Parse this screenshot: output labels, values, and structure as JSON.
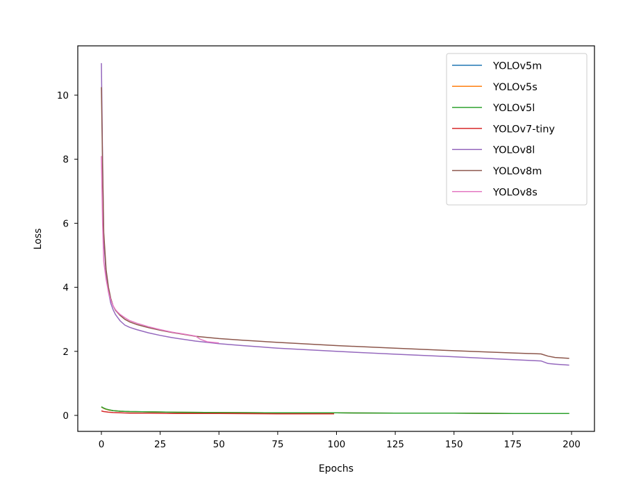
{
  "chart_data": {
    "type": "line",
    "title": "",
    "xlabel": "Epochs",
    "ylabel": "Loss",
    "xlim": [
      -10,
      210
    ],
    "ylim": [
      -0.5,
      11.5
    ],
    "xticks": [
      0,
      25,
      50,
      75,
      100,
      125,
      150,
      175,
      200
    ],
    "yticks": [
      0,
      2,
      4,
      6,
      8,
      10
    ],
    "grid": false,
    "legend_position": "upper right",
    "series": [
      {
        "name": "YOLOv5m",
        "color": "#1f77b4",
        "x": [
          0,
          1,
          2,
          3,
          5,
          8,
          12,
          20,
          30,
          50,
          75,
          100,
          125,
          150,
          175,
          199
        ],
        "y": [
          0.26,
          0.22,
          0.19,
          0.17,
          0.15,
          0.13,
          0.12,
          0.11,
          0.1,
          0.09,
          0.08,
          0.08,
          0.07,
          0.07,
          0.06,
          0.06
        ]
      },
      {
        "name": "YOLOv5s",
        "color": "#ff7f0e",
        "x": [
          0,
          1,
          2,
          3,
          5,
          8,
          12,
          20,
          30,
          50,
          75,
          100,
          125,
          150,
          175,
          199
        ],
        "y": [
          0.26,
          0.22,
          0.19,
          0.17,
          0.15,
          0.13,
          0.12,
          0.11,
          0.1,
          0.09,
          0.08,
          0.08,
          0.07,
          0.07,
          0.06,
          0.06
        ]
      },
      {
        "name": "YOLOv5l",
        "color": "#2ca02c",
        "x": [
          0,
          1,
          2,
          3,
          5,
          8,
          12,
          20,
          30,
          50,
          75,
          100,
          125,
          150,
          175,
          199
        ],
        "y": [
          0.27,
          0.23,
          0.2,
          0.18,
          0.15,
          0.13,
          0.12,
          0.11,
          0.1,
          0.09,
          0.08,
          0.08,
          0.07,
          0.07,
          0.06,
          0.06
        ]
      },
      {
        "name": "YOLOv7-tiny",
        "color": "#d62728",
        "x": [
          0,
          1,
          2,
          3,
          5,
          8,
          12,
          20,
          30,
          50,
          75,
          99
        ],
        "y": [
          0.14,
          0.12,
          0.11,
          0.1,
          0.09,
          0.08,
          0.07,
          0.07,
          0.06,
          0.06,
          0.05,
          0.05
        ]
      },
      {
        "name": "YOLOv8l",
        "color": "#9467bd",
        "x": [
          0,
          0.5,
          1,
          2,
          3,
          4,
          5,
          6,
          7,
          8,
          10,
          12,
          15,
          20,
          25,
          30,
          40,
          50,
          60,
          75,
          100,
          125,
          150,
          175,
          187,
          190,
          193,
          199
        ],
        "y": [
          11.0,
          8.0,
          5.5,
          4.4,
          3.85,
          3.5,
          3.3,
          3.15,
          3.05,
          2.95,
          2.82,
          2.75,
          2.68,
          2.58,
          2.5,
          2.43,
          2.32,
          2.24,
          2.18,
          2.1,
          2.0,
          1.91,
          1.83,
          1.74,
          1.7,
          1.62,
          1.6,
          1.57
        ]
      },
      {
        "name": "YOLOv8m",
        "color": "#8c564b",
        "x": [
          0,
          0.5,
          1,
          2,
          3,
          4,
          5,
          6,
          7,
          8,
          10,
          12,
          15,
          20,
          25,
          30,
          40,
          50,
          60,
          75,
          100,
          125,
          150,
          175,
          187,
          190,
          193,
          199
        ],
        "y": [
          10.25,
          7.8,
          5.7,
          4.55,
          4.0,
          3.65,
          3.42,
          3.28,
          3.2,
          3.12,
          3.0,
          2.92,
          2.84,
          2.74,
          2.66,
          2.59,
          2.47,
          2.4,
          2.35,
          2.28,
          2.18,
          2.1,
          2.02,
          1.95,
          1.92,
          1.85,
          1.81,
          1.78
        ]
      },
      {
        "name": "YOLOv8s",
        "color": "#e377c2",
        "x": [
          0,
          0.5,
          1,
          2,
          3,
          4,
          5,
          6,
          7,
          8,
          10,
          12,
          15,
          20,
          25,
          30,
          35,
          40,
          42,
          45,
          50
        ],
        "y": [
          8.1,
          6.0,
          4.8,
          4.25,
          3.85,
          3.6,
          3.42,
          3.3,
          3.22,
          3.15,
          3.05,
          2.96,
          2.88,
          2.77,
          2.68,
          2.6,
          2.54,
          2.48,
          2.38,
          2.3,
          2.26
        ]
      }
    ]
  }
}
